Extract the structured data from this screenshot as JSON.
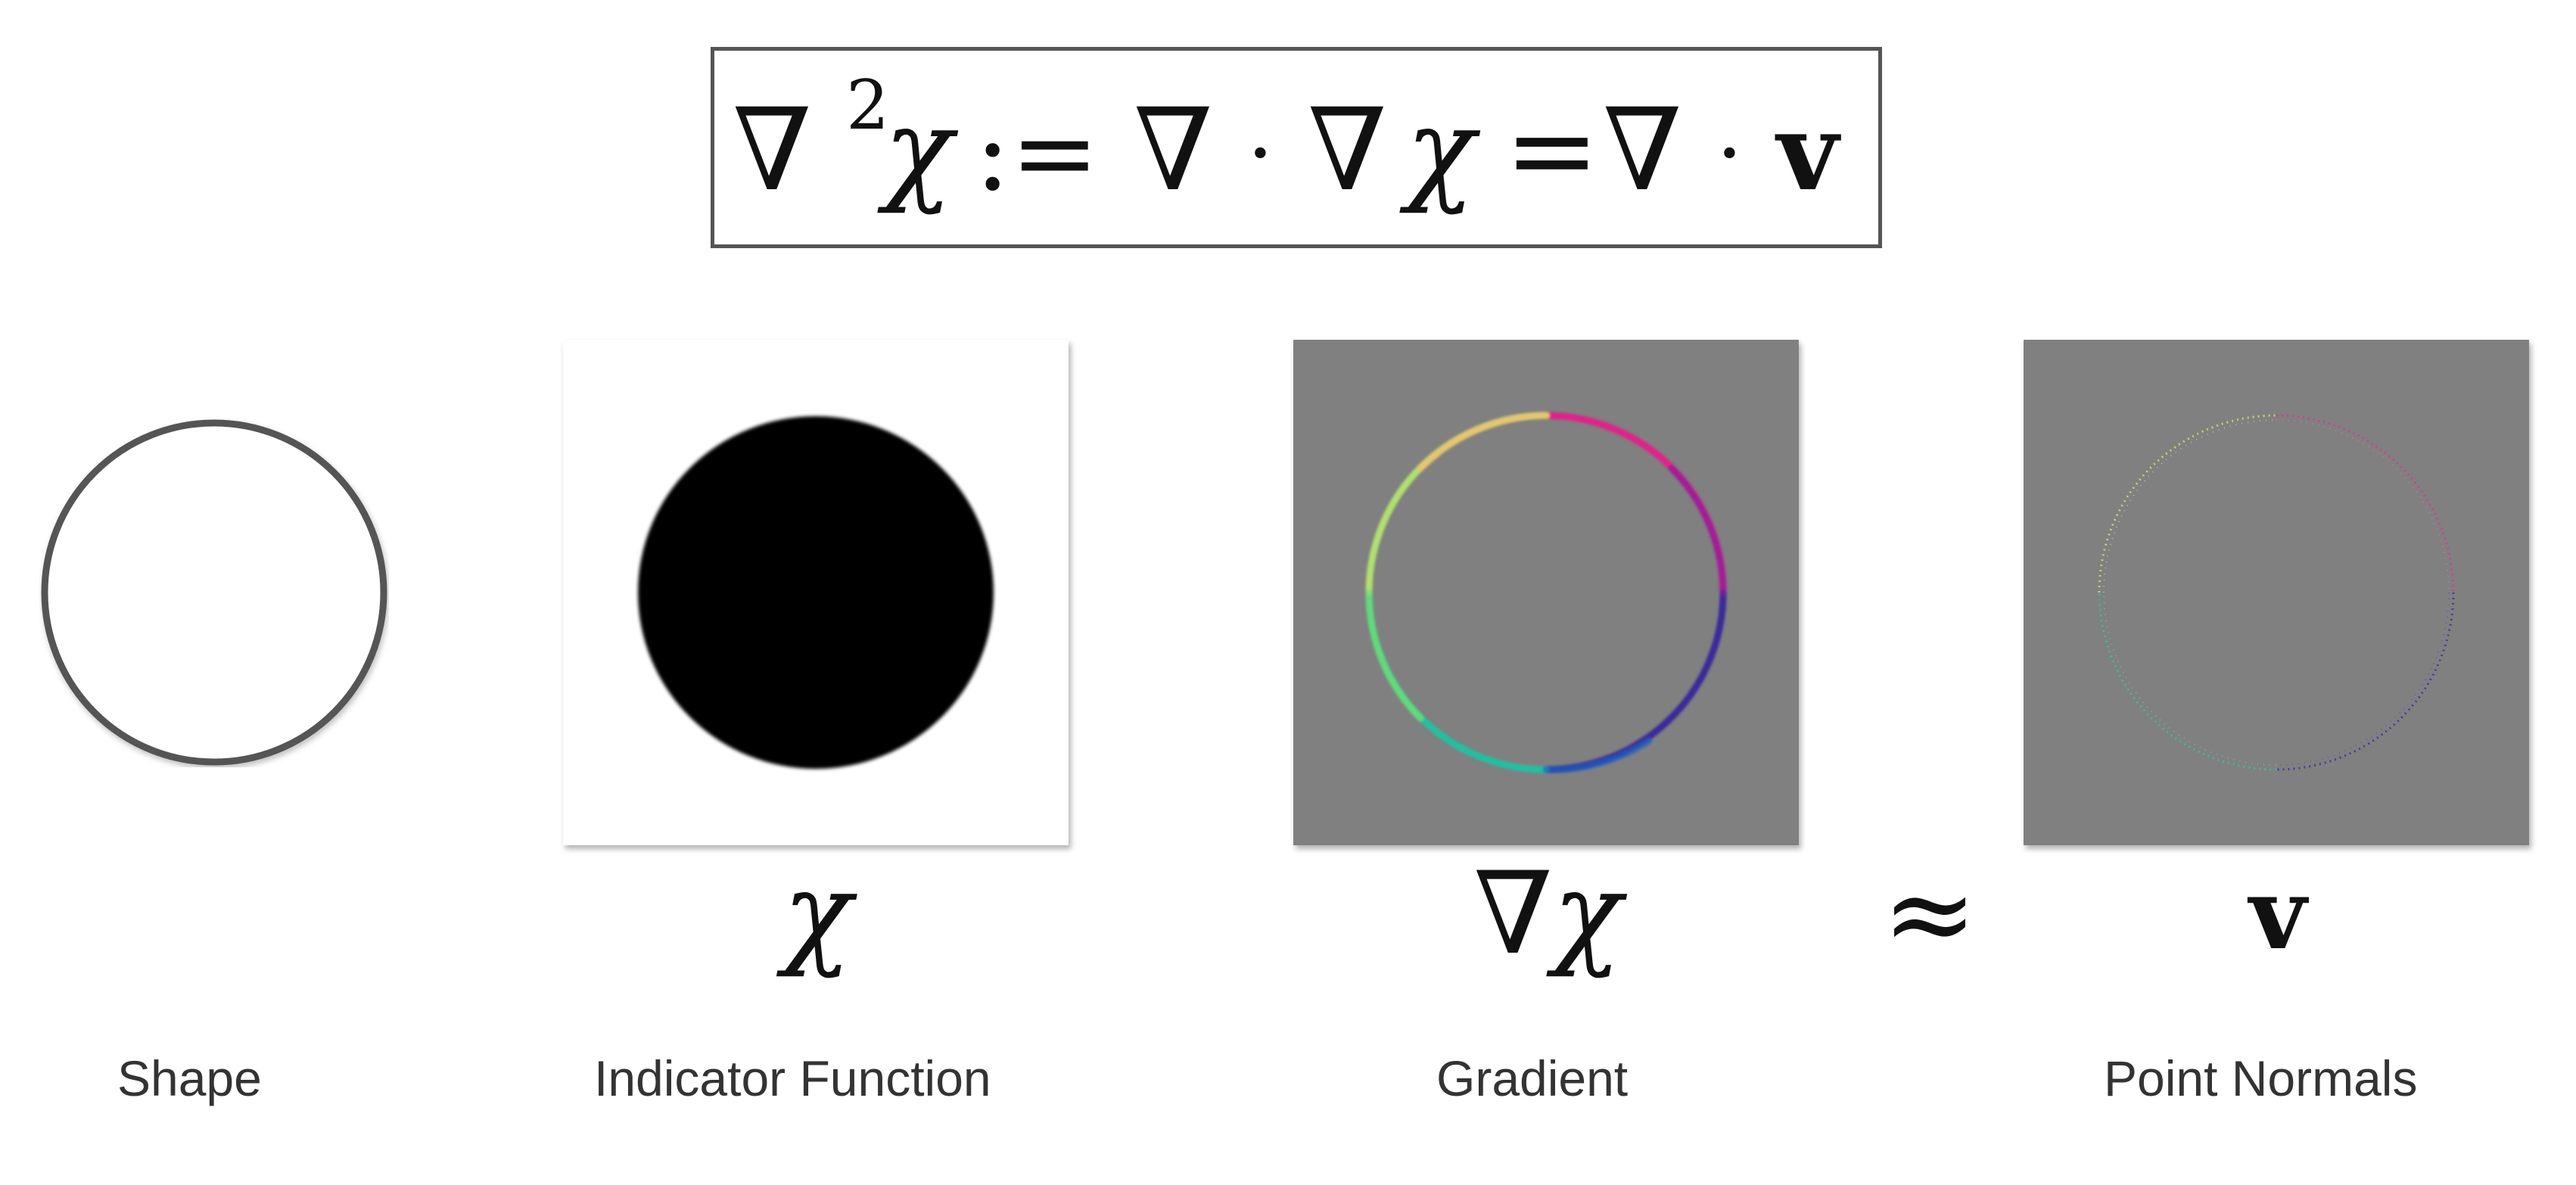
{
  "equation": {
    "lhs": "∇²χ",
    "assign": ":=",
    "middle": "∇ · ∇χ",
    "equals": "=",
    "rhs": "∇ · v"
  },
  "symbols": {
    "chi": "χ",
    "nabla": "∇",
    "approx": "≈",
    "v": "v"
  },
  "captions": {
    "shape": "Shape",
    "indicator": "Indicator Function",
    "gradient": "Gradient",
    "normals": "Point Normals"
  },
  "colors": {
    "panel_gray": "#808080",
    "outline": "#555555",
    "fill_black": "#000000"
  }
}
